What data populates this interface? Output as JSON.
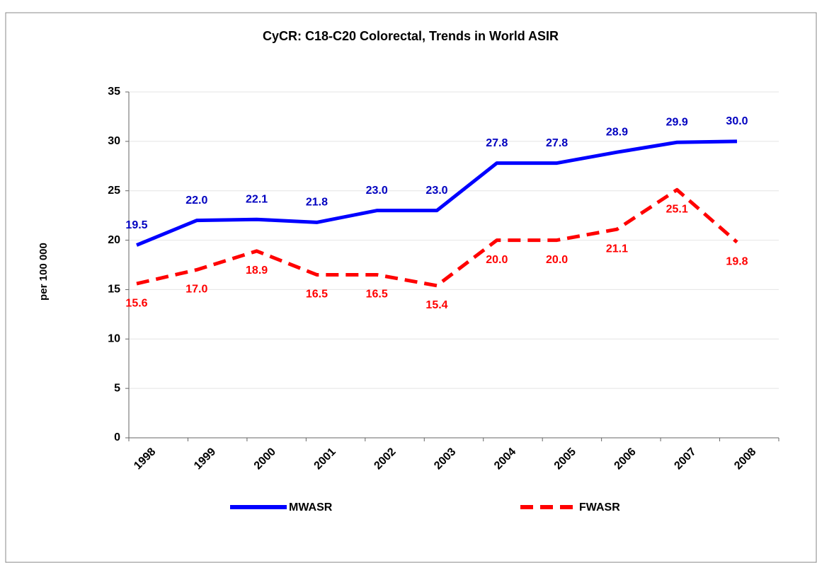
{
  "chart_data": {
    "type": "line",
    "title": "CyCR:  C18-C20  Colorectal,   Trends in World ASIR",
    "y_label": "per 100 000",
    "categories": [
      "1998",
      "1999",
      "2000",
      "2001",
      "2002",
      "2003",
      "2004",
      "2005",
      "2006",
      "2007",
      "2008"
    ],
    "series": [
      {
        "name": "MWASR",
        "color": "#0000ff",
        "label_color": "#0000c0",
        "dash": false,
        "values": [
          19.5,
          22.0,
          22.1,
          21.8,
          23.0,
          23.0,
          27.8,
          27.8,
          28.9,
          29.9,
          30.0
        ],
        "value_labels": [
          "19.5",
          "22.0",
          "22.1",
          "21.8",
          "23.0",
          "23.0",
          "27.8",
          "27.8",
          "28.9",
          "29.9",
          "30.0"
        ]
      },
      {
        "name": "FWASR",
        "color": "#ff0000",
        "label_color": "#ff0000",
        "dash": true,
        "values": [
          15.6,
          17.0,
          18.9,
          16.5,
          16.5,
          15.4,
          20.0,
          20.0,
          21.1,
          25.1,
          19.8
        ],
        "value_labels": [
          "15.6",
          "17.0",
          "18.9",
          "16.5",
          "16.5",
          "15.4",
          "20.0",
          "20.0",
          "21.1",
          "25.1",
          "19.8"
        ]
      }
    ],
    "ylim": [
      0,
      35
    ],
    "yticks": [
      0,
      5,
      10,
      15,
      20,
      25,
      30,
      35
    ],
    "grid": true,
    "legend": "bottom"
  }
}
